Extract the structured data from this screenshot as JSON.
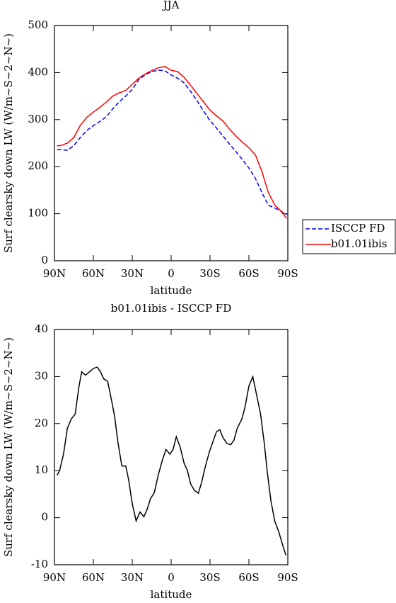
{
  "chart_data": [
    {
      "type": "line",
      "title": "JJA",
      "ylabel": "Surf clearsky down LW (W/m~S~2~N~)",
      "xlabel": "latitude",
      "x": [
        88,
        85,
        80,
        75,
        70,
        65,
        60,
        55,
        50,
        45,
        40,
        35,
        30,
        25,
        20,
        15,
        10,
        5,
        0,
        -5,
        -10,
        -15,
        -20,
        -25,
        -30,
        -35,
        -40,
        -45,
        -50,
        -55,
        -60,
        -65,
        -70,
        -75,
        -80,
        -85,
        -89
      ],
      "series": [
        {
          "name": "ISCCP FD",
          "color": "#0000ff",
          "dash": true,
          "values": [
            236,
            236,
            235,
            245,
            262,
            277,
            287,
            296,
            306,
            323,
            338,
            350,
            364,
            385,
            395,
            402,
            405,
            404,
            395,
            388,
            378,
            360,
            340,
            318,
            298,
            282,
            265,
            248,
            232,
            215,
            197,
            175,
            145,
            118,
            112,
            105,
            98
          ]
        },
        {
          "name": "b01.01ibis",
          "color": "#ff0000",
          "dash": false,
          "values": [
            244,
            245,
            250,
            262,
            288,
            305,
            316,
            326,
            337,
            350,
            357,
            362,
            375,
            388,
            397,
            404,
            410,
            413,
            405,
            402,
            390,
            373,
            355,
            338,
            320,
            308,
            297,
            280,
            265,
            252,
            240,
            225,
            190,
            145,
            118,
            105,
            90
          ]
        }
      ],
      "xlim": [
        90,
        -90
      ],
      "xticks": [
        {
          "value": 90,
          "label": "90N"
        },
        {
          "value": 60,
          "label": "60N"
        },
        {
          "value": 30,
          "label": "30N"
        },
        0,
        {
          "value": -30,
          "label": "30S"
        },
        {
          "value": -60,
          "label": "60S"
        },
        {
          "value": -90,
          "label": "90S"
        }
      ],
      "ylim": [
        0,
        500
      ],
      "yticks": [
        0,
        100,
        200,
        300,
        400,
        500
      ],
      "legend": "right"
    },
    {
      "type": "line",
      "title": "b01.01ibis - ISCCP FD",
      "ylabel": "Surf clearsky down LW (W/m~S~2~N~)",
      "xlabel": "latitude",
      "x": [
        88,
        86,
        83,
        80,
        77,
        74,
        71,
        69,
        66,
        63,
        60,
        57,
        54.5,
        52,
        49,
        46,
        43.6,
        41,
        38,
        35,
        32.7,
        30,
        27,
        24,
        21,
        18.5,
        16,
        13,
        10,
        7,
        4,
        1,
        -1.5,
        -4,
        -7,
        -10,
        -12.6,
        -15,
        -18,
        -21,
        -23.5,
        -26,
        -29.5,
        -32,
        -35,
        -37.6,
        -40,
        -43,
        -46,
        -48.5,
        -51,
        -54.6,
        -57,
        -60,
        -63,
        -66,
        -69,
        -72,
        -74,
        -77,
        -80,
        -83,
        -86,
        -88.5
      ],
      "series": [
        {
          "name": null,
          "color": "#000000",
          "dash": false,
          "values": [
            9,
            10,
            13.5,
            19,
            21,
            22,
            28,
            31,
            30.3,
            31,
            31.7,
            32,
            31,
            29.5,
            29,
            25,
            21.5,
            16,
            11,
            11,
            8,
            3,
            -0.7,
            1.2,
            0.2,
            1.8,
            4,
            5.3,
            9,
            12,
            14.5,
            13.5,
            14.5,
            17.2,
            15,
            11.6,
            10,
            7.2,
            5.8,
            5.2,
            7.5,
            10.5,
            14,
            16,
            18.3,
            18.7,
            17,
            15.8,
            15.5,
            16.5,
            19,
            21,
            23.5,
            28,
            30,
            26,
            22,
            15.5,
            10,
            3.5,
            -0.8,
            -3,
            -5.8,
            -8
          ]
        }
      ],
      "xlim": [
        90,
        -90
      ],
      "xticks": [
        {
          "value": 90,
          "label": "90N"
        },
        {
          "value": 60,
          "label": "60N"
        },
        {
          "value": 30,
          "label": "30N"
        },
        0,
        {
          "value": -30,
          "label": "30S"
        },
        {
          "value": -60,
          "label": "60S"
        },
        {
          "value": -90,
          "label": "90S"
        }
      ],
      "ylim": [
        -10,
        40
      ],
      "yticks": [
        -10,
        0,
        10,
        20,
        30,
        40
      ]
    }
  ]
}
